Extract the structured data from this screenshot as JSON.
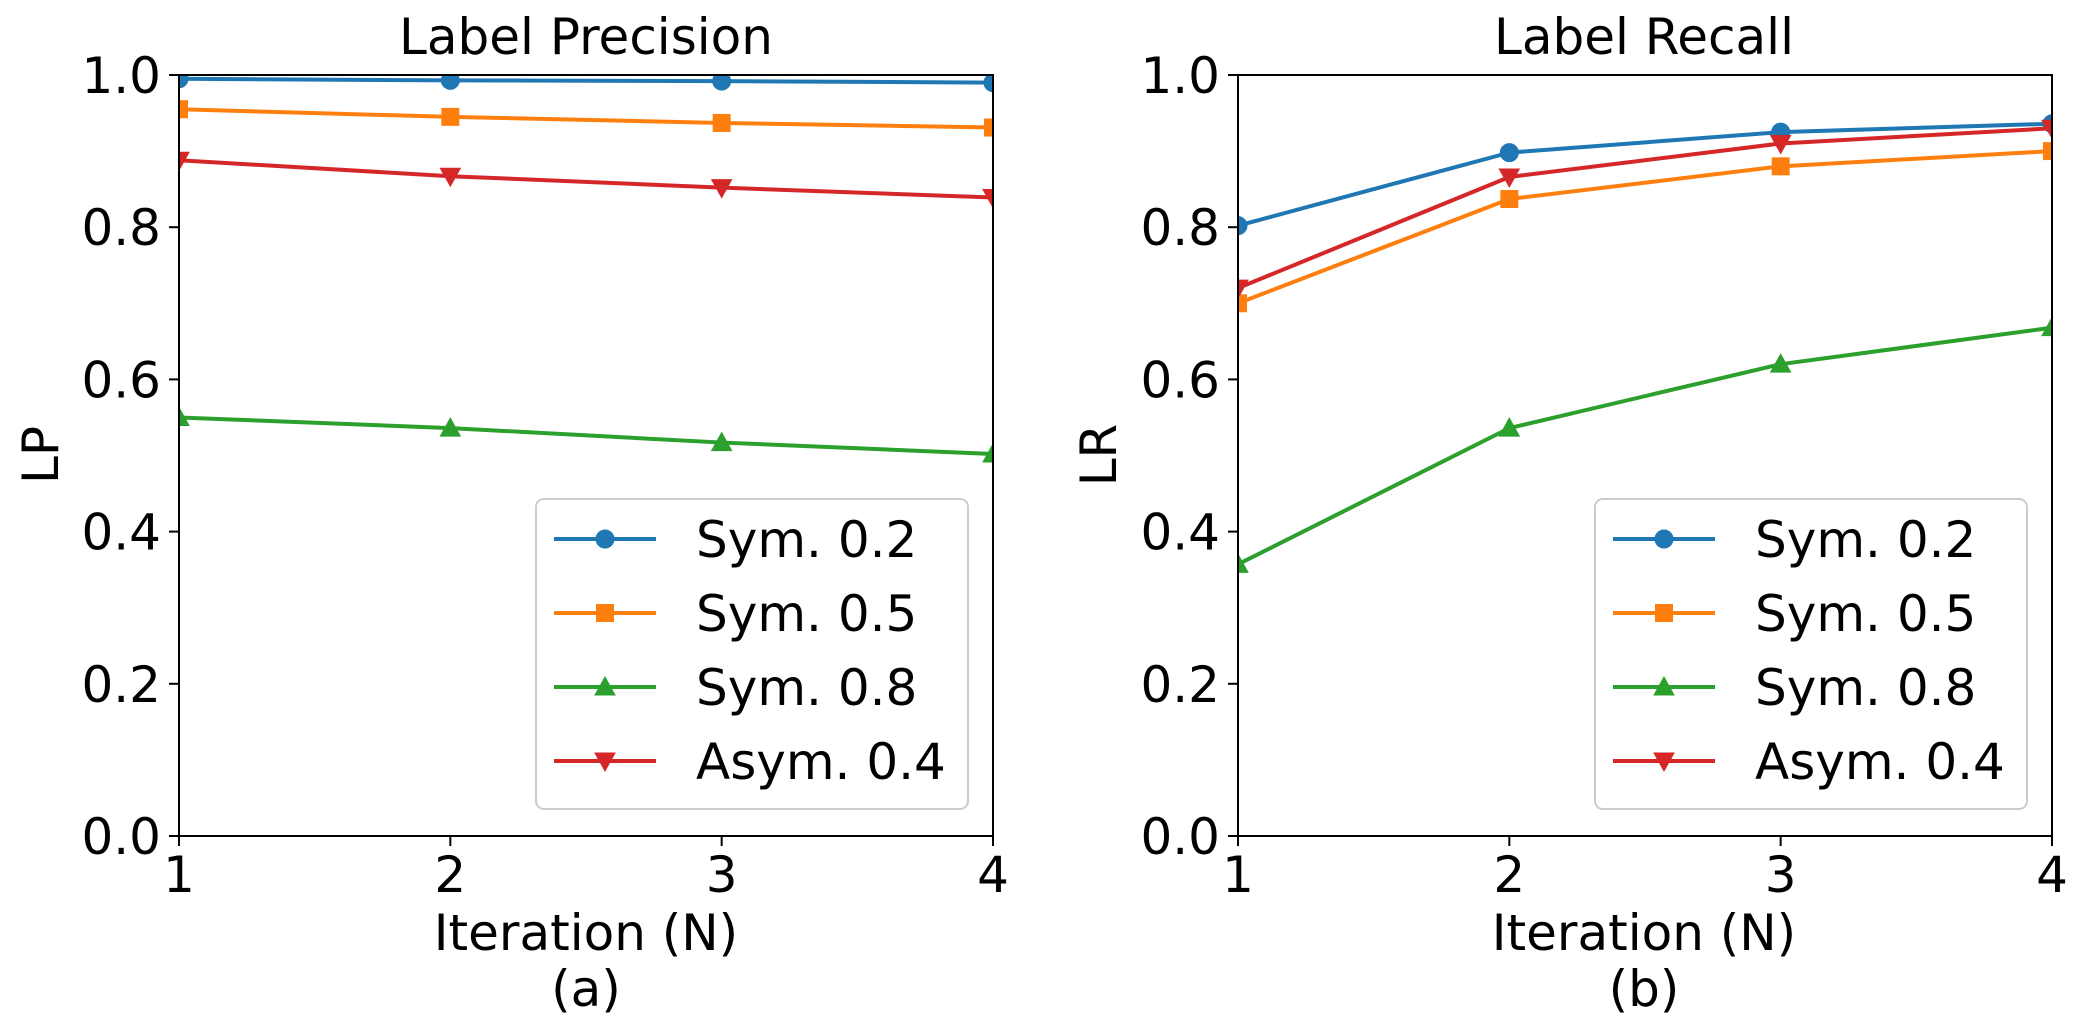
{
  "chart_data": [
    {
      "type": "line",
      "title": "Label Precision",
      "xlabel": "Iteration (N)",
      "ylabel": "LP",
      "caption": "(a)",
      "x": [
        1,
        2,
        3,
        4
      ],
      "xlim": [
        1,
        4
      ],
      "ylim": [
        0.0,
        1.0
      ],
      "x_ticks": [
        "1",
        "2",
        "3",
        "4"
      ],
      "y_ticks": [
        "0.0",
        "0.2",
        "0.4",
        "0.6",
        "0.8",
        "1.0"
      ],
      "grid": false,
      "legend_position": "bottom-right",
      "series": [
        {
          "name": "Sym. 0.2",
          "color": "#1f77b4",
          "marker": "circle",
          "values": [
            0.995,
            0.993,
            0.992,
            0.99
          ]
        },
        {
          "name": "Sym. 0.5",
          "color": "#ff7f0e",
          "marker": "square",
          "values": [
            0.955,
            0.945,
            0.937,
            0.931
          ]
        },
        {
          "name": "Sym. 0.8",
          "color": "#2ca02c",
          "marker": "triangle-up",
          "values": [
            0.55,
            0.536,
            0.517,
            0.502
          ]
        },
        {
          "name": "Asym. 0.4",
          "color": "#d62728",
          "marker": "triangle-down",
          "values": [
            0.888,
            0.867,
            0.852,
            0.839
          ]
        }
      ]
    },
    {
      "type": "line",
      "title": "Label Recall",
      "xlabel": "Iteration (N)",
      "ylabel": "LR",
      "caption": "(b)",
      "x": [
        1,
        2,
        3,
        4
      ],
      "xlim": [
        1,
        4
      ],
      "ylim": [
        0.0,
        1.0
      ],
      "x_ticks": [
        "1",
        "2",
        "3",
        "4"
      ],
      "y_ticks": [
        "0.0",
        "0.2",
        "0.4",
        "0.6",
        "0.8",
        "1.0"
      ],
      "grid": false,
      "legend_position": "bottom-right",
      "series": [
        {
          "name": "Sym. 0.2",
          "color": "#1f77b4",
          "marker": "circle",
          "values": [
            0.802,
            0.898,
            0.925,
            0.936
          ]
        },
        {
          "name": "Sym. 0.5",
          "color": "#ff7f0e",
          "marker": "square",
          "values": [
            0.7,
            0.837,
            0.88,
            0.9
          ]
        },
        {
          "name": "Sym. 0.8",
          "color": "#2ca02c",
          "marker": "triangle-up",
          "values": [
            0.357,
            0.536,
            0.62,
            0.668
          ]
        },
        {
          "name": "Asym. 0.4",
          "color": "#d62728",
          "marker": "triangle-down",
          "values": [
            0.72,
            0.866,
            0.91,
            0.93
          ]
        }
      ]
    }
  ]
}
